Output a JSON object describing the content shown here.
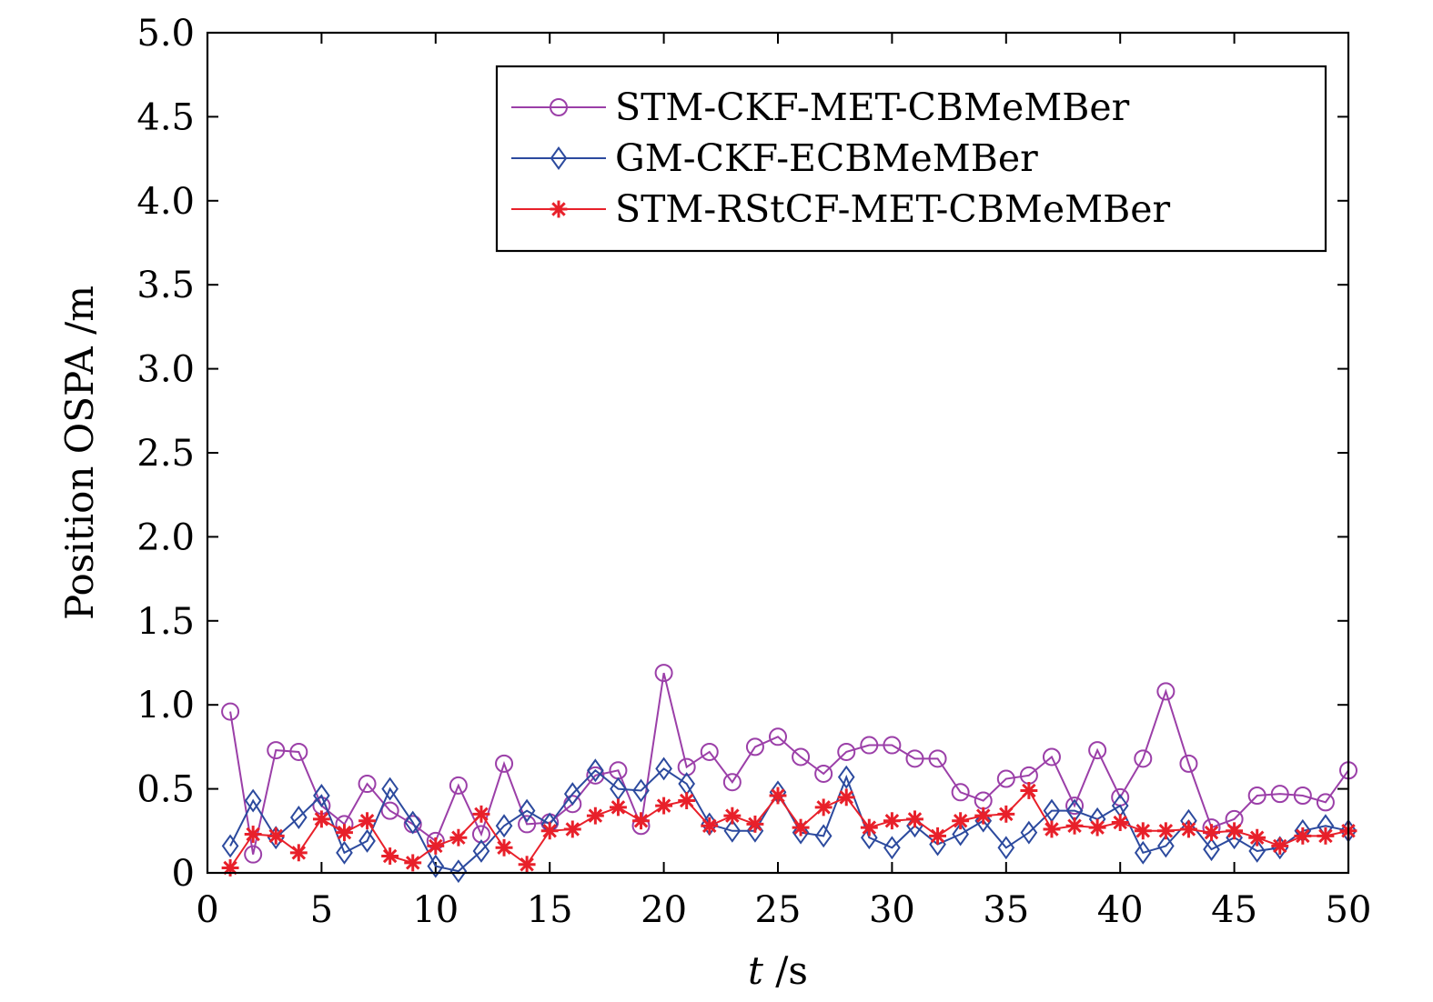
{
  "chart_data": {
    "type": "line",
    "title": "",
    "xlabel_var": "t",
    "xlabel_unit": " /s",
    "ylabel": "Position OSPA /m",
    "xlim": [
      0,
      50
    ],
    "ylim": [
      0,
      5.0
    ],
    "xticks": [
      0,
      5,
      10,
      15,
      20,
      25,
      30,
      35,
      40,
      45,
      50
    ],
    "xtick_labels": [
      "0",
      "5",
      "10",
      "15",
      "20",
      "25",
      "30",
      "35",
      "40",
      "45",
      "50"
    ],
    "yticks": [
      0,
      0.5,
      1.0,
      1.5,
      2.0,
      2.5,
      3.0,
      3.5,
      4.0,
      4.5,
      5.0
    ],
    "ytick_labels": [
      "0",
      "0.5",
      "1.0",
      "1.5",
      "2.0",
      "2.5",
      "3.0",
      "3.5",
      "4.0",
      "4.5",
      "5.0"
    ],
    "grid": false,
    "legend_position": "top-right",
    "x": [
      1,
      2,
      3,
      4,
      5,
      6,
      7,
      8,
      9,
      10,
      11,
      12,
      13,
      14,
      15,
      16,
      17,
      18,
      19,
      20,
      21,
      22,
      23,
      24,
      25,
      26,
      27,
      28,
      29,
      30,
      31,
      32,
      33,
      34,
      35,
      36,
      37,
      38,
      39,
      40,
      41,
      42,
      43,
      44,
      45,
      46,
      47,
      48,
      49,
      50
    ],
    "series": [
      {
        "name": "STM-CKF-MET-CBMeMBer",
        "color": "#9b3fa8",
        "marker": "circle",
        "values": [
          0.96,
          0.11,
          0.73,
          0.72,
          0.4,
          0.29,
          0.53,
          0.37,
          0.29,
          0.19,
          0.52,
          0.23,
          0.65,
          0.29,
          0.3,
          0.41,
          0.58,
          0.61,
          0.28,
          1.19,
          0.63,
          0.72,
          0.54,
          0.75,
          0.81,
          0.69,
          0.59,
          0.72,
          0.76,
          0.76,
          0.68,
          0.68,
          0.48,
          0.43,
          0.56,
          0.58,
          0.69,
          0.4,
          0.73,
          0.45,
          0.68,
          1.08,
          0.65,
          0.27,
          0.32,
          0.46,
          0.47,
          0.46,
          0.42,
          0.61
        ]
      },
      {
        "name": "GM-CKF-ECBMeMBer",
        "color": "#2c4a9e",
        "marker": "diamond",
        "values": [
          0.16,
          0.43,
          0.21,
          0.33,
          0.46,
          0.12,
          0.19,
          0.5,
          0.3,
          0.04,
          0.01,
          0.13,
          0.28,
          0.37,
          0.29,
          0.47,
          0.61,
          0.5,
          0.49,
          0.62,
          0.53,
          0.29,
          0.25,
          0.25,
          0.48,
          0.24,
          0.22,
          0.57,
          0.21,
          0.15,
          0.28,
          0.17,
          0.23,
          0.31,
          0.15,
          0.24,
          0.37,
          0.37,
          0.32,
          0.4,
          0.12,
          0.16,
          0.31,
          0.14,
          0.21,
          0.13,
          0.15,
          0.25,
          0.28,
          0.25
        ]
      },
      {
        "name": "STM-RStCF-MET-CBMeMBer",
        "color": "#e8202a",
        "marker": "star",
        "values": [
          0.03,
          0.23,
          0.22,
          0.12,
          0.32,
          0.24,
          0.31,
          0.1,
          0.06,
          0.16,
          0.21,
          0.35,
          0.15,
          0.05,
          0.25,
          0.26,
          0.34,
          0.39,
          0.31,
          0.4,
          0.43,
          0.28,
          0.34,
          0.29,
          0.46,
          0.27,
          0.39,
          0.45,
          0.27,
          0.31,
          0.32,
          0.22,
          0.31,
          0.34,
          0.35,
          0.49,
          0.26,
          0.28,
          0.27,
          0.3,
          0.25,
          0.25,
          0.26,
          0.24,
          0.25,
          0.21,
          0.16,
          0.22,
          0.22,
          0.25
        ]
      }
    ]
  }
}
